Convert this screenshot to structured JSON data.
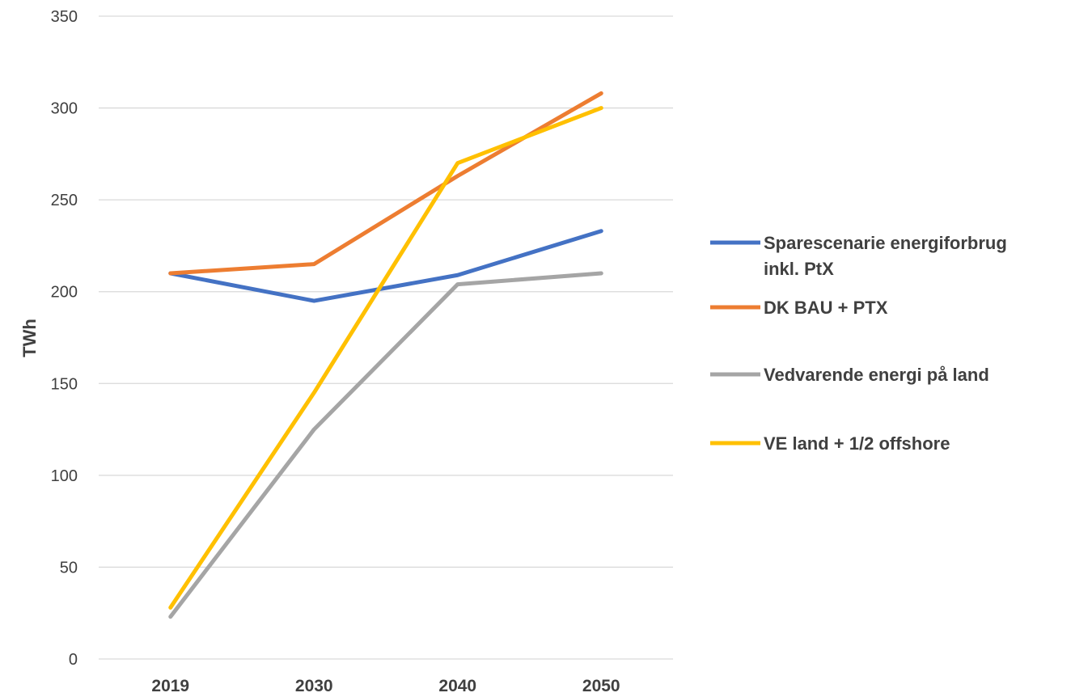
{
  "chart_data": {
    "type": "line",
    "title": "",
    "xlabel": "",
    "ylabel": "TWh",
    "categories": [
      "2019",
      "2030",
      "2040",
      "2050"
    ],
    "ylim": [
      0,
      350
    ],
    "yticks": [
      0,
      50,
      100,
      150,
      200,
      250,
      300,
      350
    ],
    "grid": true,
    "legend_position": "right",
    "series": [
      {
        "name": "Sparescenarie energiforbrug inkl. PtX",
        "name_lines": [
          "Sparescenarie energiforbrug",
          "inkl. PtX"
        ],
        "color": "#4472C4",
        "values": [
          210,
          195,
          209,
          233
        ]
      },
      {
        "name": "DK BAU + PTX",
        "name_lines": [
          "DK BAU + PTX"
        ],
        "color": "#ED7D31",
        "values": [
          210,
          215,
          263,
          308
        ]
      },
      {
        "name": "Vedvarende energi på land",
        "name_lines": [
          "Vedvarende energi på land"
        ],
        "color": "#A5A5A5",
        "values": [
          23,
          125,
          204,
          210
        ]
      },
      {
        "name": "VE land + 1/2 offshore",
        "name_lines": [
          "VE land + 1/2 offshore"
        ],
        "color": "#FFC000",
        "values": [
          28,
          145,
          270,
          300
        ]
      }
    ]
  }
}
